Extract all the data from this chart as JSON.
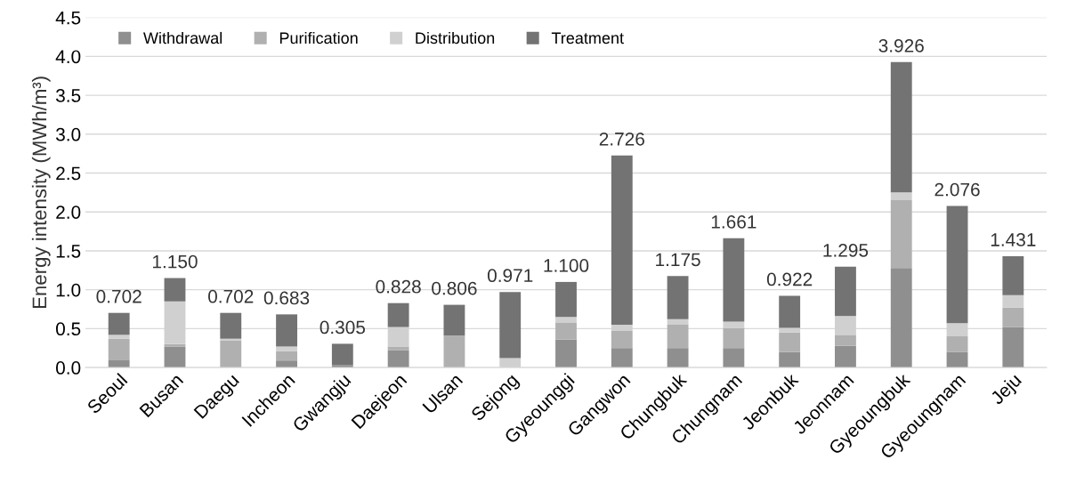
{
  "chart_data": {
    "type": "bar",
    "stacked": true,
    "ylabel": "Energy intensity (MWh/m³)",
    "categories": [
      "Seoul",
      "Busan",
      "Daegu",
      "Incheon",
      "Gwangju",
      "Daejeon",
      "Ulsan",
      "Sejong",
      "Gyeounggi",
      "Gangwon",
      "Chungbuk",
      "Chungnam",
      "Jeonbuk",
      "Jeonnam",
      "Gyeoungbuk",
      "Gyeoungnam",
      "Jeju"
    ],
    "series": [
      {
        "name": "Withdrawal",
        "color": "#8f8f8f",
        "values": [
          0.1,
          0.27,
          0.0,
          0.09,
          0.03,
          0.22,
          0.0,
          0.0,
          0.36,
          0.25,
          0.25,
          0.25,
          0.2,
          0.28,
          1.28,
          0.2,
          0.52
        ]
      },
      {
        "name": "Purification",
        "color": "#b0b0b0",
        "values": [
          0.27,
          0.03,
          0.35,
          0.12,
          0.0,
          0.05,
          0.41,
          0.0,
          0.22,
          0.22,
          0.3,
          0.26,
          0.25,
          0.14,
          0.87,
          0.2,
          0.25
        ]
      },
      {
        "name": "Distribution",
        "color": "#d0d0d0",
        "values": [
          0.05,
          0.55,
          0.02,
          0.06,
          null,
          0.25,
          0.0,
          0.12,
          0.07,
          0.08,
          0.07,
          0.08,
          0.06,
          0.24,
          0.1,
          0.17,
          0.16
        ]
      },
      {
        "name": "Treatment",
        "color": "#737373",
        "values": [
          0.282,
          0.3,
          0.332,
          0.413,
          0.275,
          0.308,
          0.396,
          0.851,
          0.45,
          2.176,
          0.555,
          1.071,
          0.412,
          0.635,
          1.676,
          1.506,
          0.501
        ]
      }
    ],
    "totals": [
      "0.702",
      "1.150",
      "0.702",
      "0.683",
      "0.305",
      "0.828",
      "0.806",
      "0.971",
      "1.100",
      "2.726",
      "1.175",
      "1.661",
      "0.922",
      "1.295",
      "3.926",
      "2.076",
      "1.431"
    ],
    "ylim": [
      0,
      4.5
    ],
    "yticks": [
      {
        "value": 0,
        "label": "0.0"
      },
      {
        "value": 0.5,
        "label": "0.5"
      },
      {
        "value": 1,
        "label": "1.0"
      },
      {
        "value": 1.5,
        "label": "1.5"
      },
      {
        "value": 2,
        "label": "2.0"
      },
      {
        "value": 2.5,
        "label": "2.5"
      },
      {
        "value": 3,
        "label": "3.0"
      },
      {
        "value": 3.5,
        "label": "3.5"
      },
      {
        "value": 4,
        "label": "4.0"
      },
      {
        "value": 4.5,
        "label": "4.5"
      }
    ],
    "grid": "y",
    "legend": "top left"
  }
}
